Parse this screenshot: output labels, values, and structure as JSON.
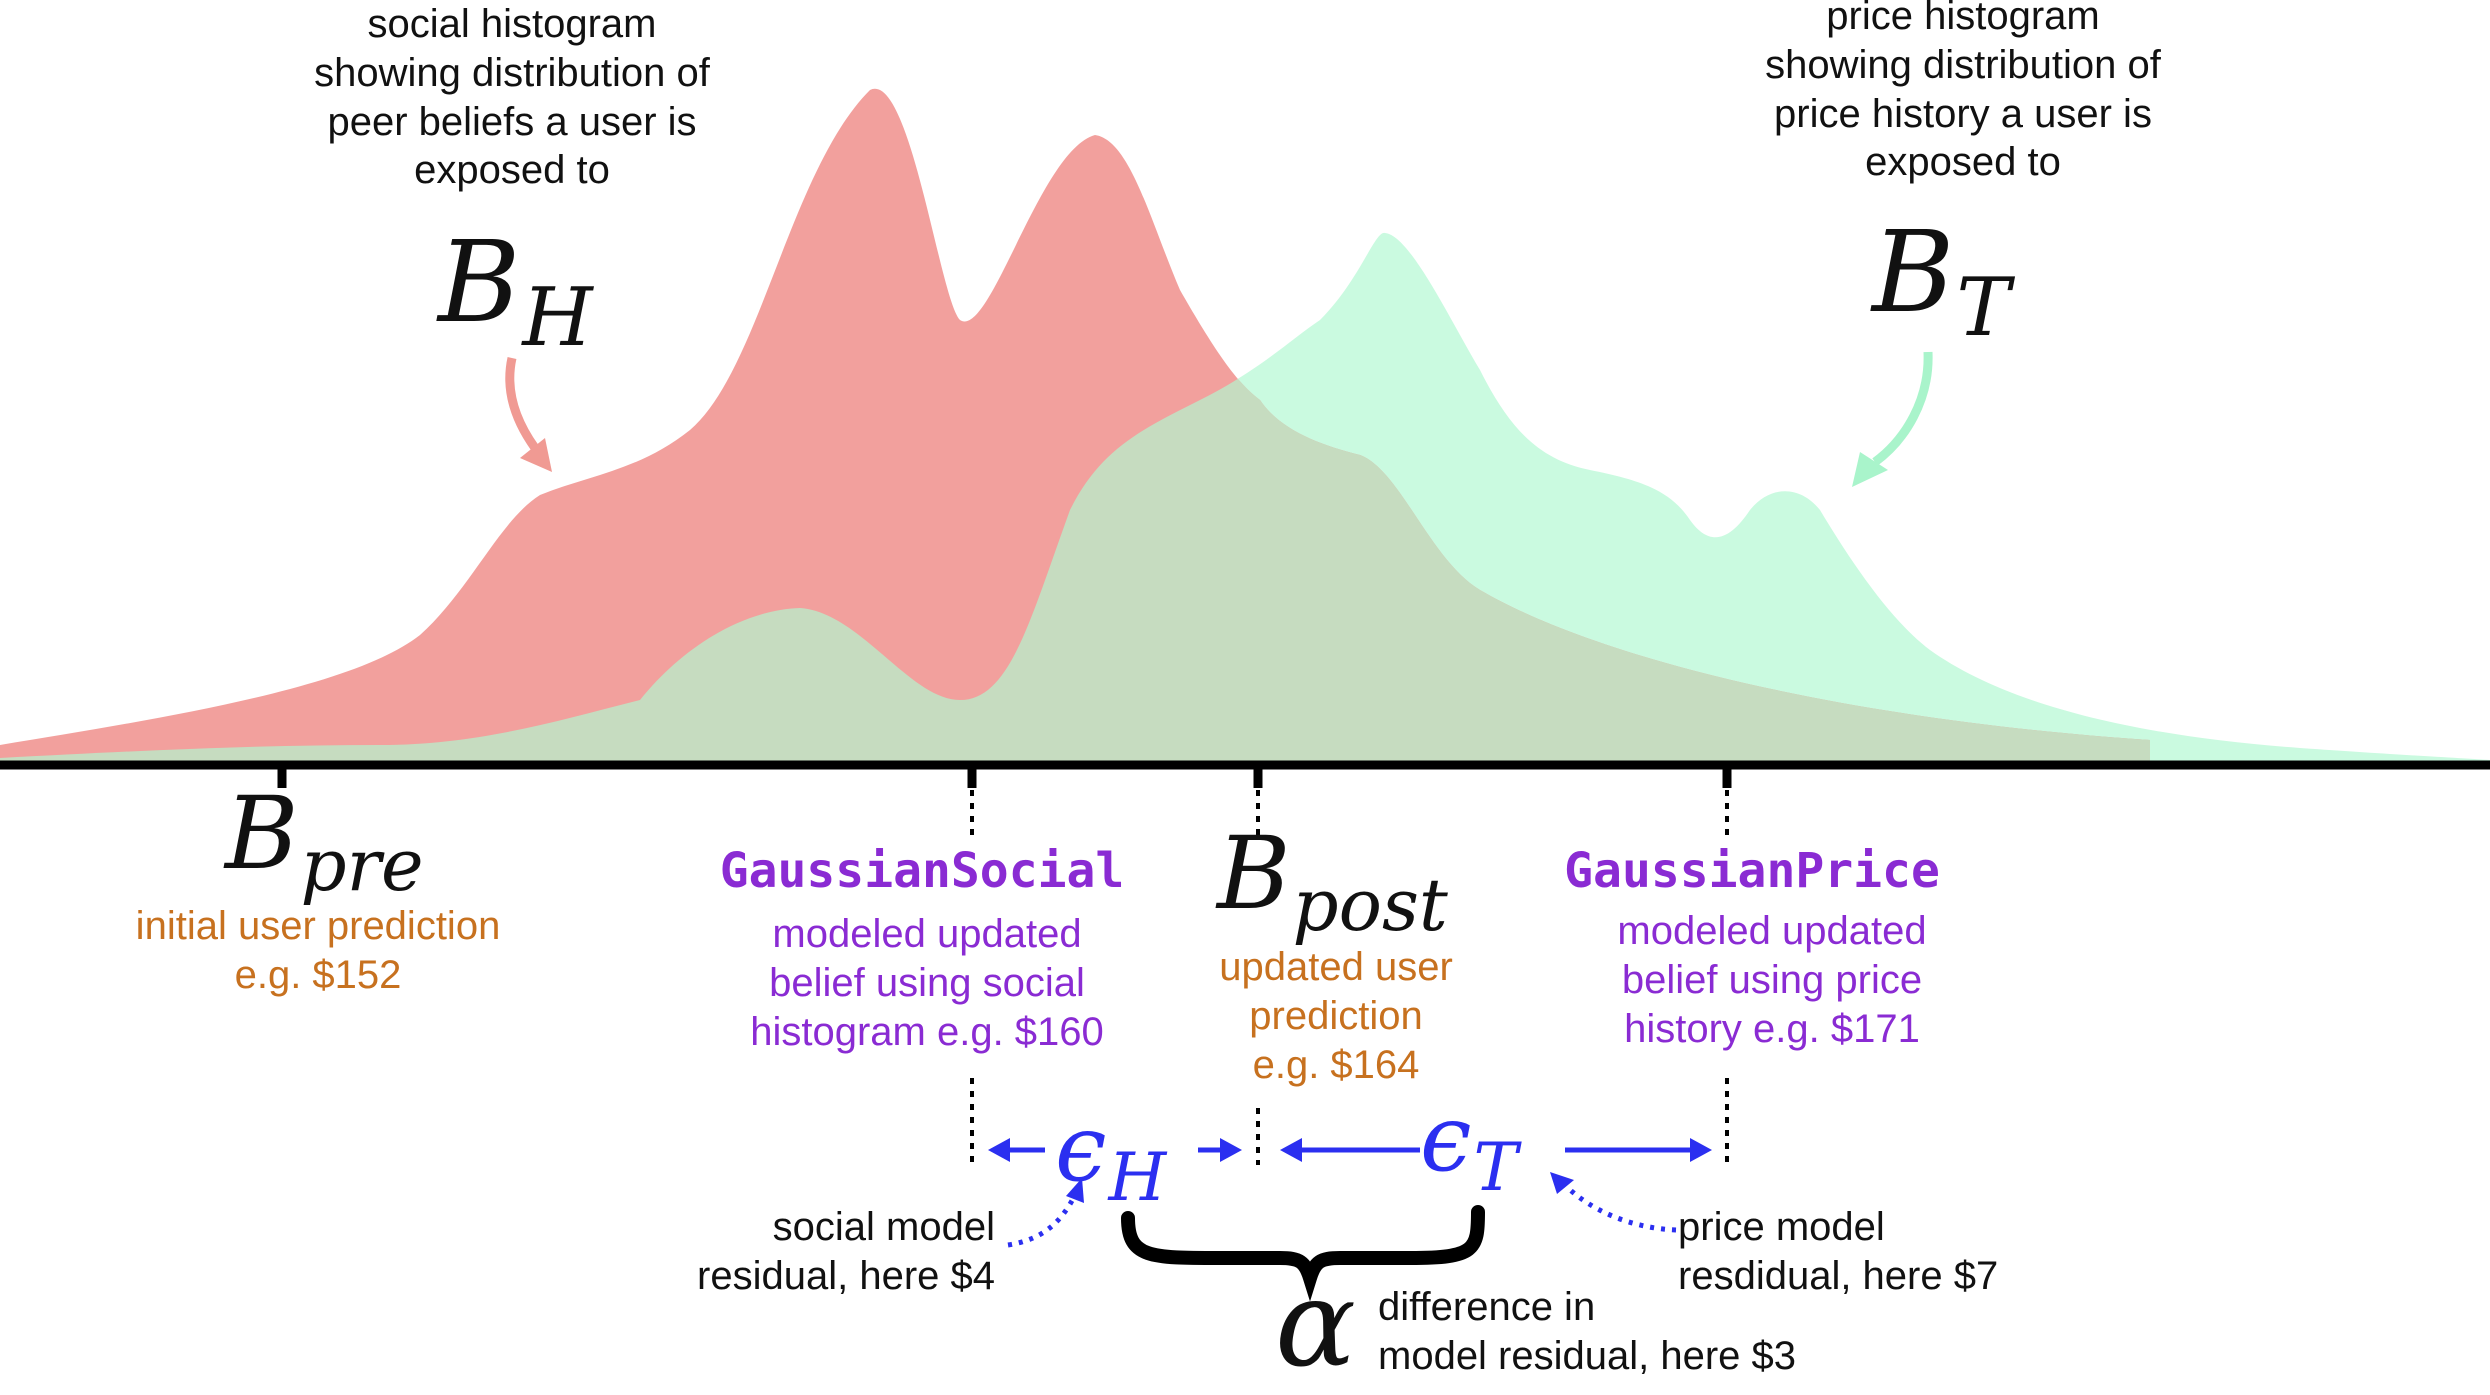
{
  "colors": {
    "social": "#f08f8c",
    "price": "#b8f8d6",
    "overlap": "#c6dcc0",
    "orange_text": "#c7711f",
    "purple_text": "#8a2bd3",
    "blue_residual": "#2b2ff0",
    "arrow_social": "#f09a93",
    "arrow_price": "#a9f4cb"
  },
  "annotations": {
    "social_histogram": "social histogram\nshowing distribution of\npeer beliefs a user is\nexposed to",
    "price_histogram": "price histogram\nshowing distribution of\nprice history a user is\nexposed to"
  },
  "symbols": {
    "bh": {
      "base": "B",
      "sub": "H"
    },
    "bt": {
      "base": "B",
      "sub": "T"
    },
    "bpre": {
      "base": "B",
      "sub": "pre"
    },
    "bpost": {
      "base": "B",
      "sub": "post"
    },
    "eh": {
      "base": "ϵ",
      "sub": "H"
    },
    "et": {
      "base": "ϵ",
      "sub": "T"
    },
    "alpha": "α"
  },
  "labels": {
    "bpre": "initial user prediction\ne.g. $152",
    "gaussian_social_title": "GaussianSocial",
    "gaussian_social": "modeled updated\nbelief using social\nhistogram e.g. $160",
    "bpost": "updated user\nprediction\ne.g. $164",
    "gaussian_price_title": "GaussianPrice",
    "gaussian_price": "modeled updated\nbelief using price\nhistory e.g. $171",
    "social_residual": "social model\nresidual, here $4",
    "price_residual": "price model\nresdidual, here $7",
    "alpha": "difference in\nmodel residual, here $3"
  }
}
